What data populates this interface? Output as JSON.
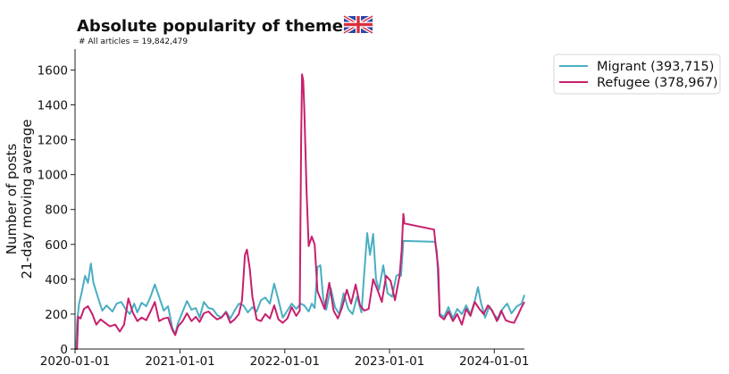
{
  "chart_data": {
    "type": "line",
    "title": "Absolute popularity of themes",
    "subtitle": "# All articles = 19,842,479",
    "flag_icon": "uk-flag-icon",
    "ylabel_lines": [
      "Number of posts",
      "21-day moving average"
    ],
    "xlabel": "",
    "ylim": [
      0,
      1720
    ],
    "y_ticks": [
      0,
      200,
      400,
      600,
      800,
      1000,
      1200,
      1400,
      1600
    ],
    "x_range": [
      "2020-01-01",
      "2024-04-15"
    ],
    "x_ticks": [
      "2020-01-01",
      "2021-01-01",
      "2022-01-01",
      "2023-01-01",
      "2024-01-01"
    ],
    "grid": false,
    "legend_position": "outside-top-right",
    "series": [
      {
        "name": "Migrant (393,715)",
        "color": "#4aaec2",
        "points": [
          [
            "2020-01-01",
            0
          ],
          [
            "2020-01-05",
            0
          ],
          [
            "2020-01-08",
            150
          ],
          [
            "2020-01-15",
            260
          ],
          [
            "2020-01-25",
            330
          ],
          [
            "2020-02-05",
            420
          ],
          [
            "2020-02-15",
            380
          ],
          [
            "2020-02-25",
            490
          ],
          [
            "2020-03-05",
            380
          ],
          [
            "2020-03-20",
            300
          ],
          [
            "2020-04-05",
            220
          ],
          [
            "2020-04-20",
            250
          ],
          [
            "2020-05-10",
            215
          ],
          [
            "2020-05-25",
            260
          ],
          [
            "2020-06-10",
            270
          ],
          [
            "2020-06-25",
            230
          ],
          [
            "2020-07-10",
            200
          ],
          [
            "2020-07-25",
            260
          ],
          [
            "2020-08-05",
            210
          ],
          [
            "2020-08-20",
            265
          ],
          [
            "2020-09-05",
            245
          ],
          [
            "2020-09-20",
            300
          ],
          [
            "2020-10-05",
            370
          ],
          [
            "2020-10-20",
            300
          ],
          [
            "2020-11-05",
            220
          ],
          [
            "2020-11-20",
            245
          ],
          [
            "2020-12-05",
            120
          ],
          [
            "2020-12-15",
            85
          ],
          [
            "2020-12-25",
            150
          ],
          [
            "2021-01-10",
            215
          ],
          [
            "2021-01-25",
            275
          ],
          [
            "2021-02-10",
            225
          ],
          [
            "2021-02-25",
            235
          ],
          [
            "2021-03-10",
            180
          ],
          [
            "2021-03-25",
            270
          ],
          [
            "2021-04-10",
            235
          ],
          [
            "2021-04-25",
            230
          ],
          [
            "2021-05-10",
            195
          ],
          [
            "2021-05-25",
            180
          ],
          [
            "2021-06-10",
            215
          ],
          [
            "2021-06-25",
            175
          ],
          [
            "2021-07-10",
            220
          ],
          [
            "2021-07-25",
            260
          ],
          [
            "2021-08-10",
            250
          ],
          [
            "2021-08-25",
            210
          ],
          [
            "2021-09-10",
            240
          ],
          [
            "2021-09-25",
            215
          ],
          [
            "2021-10-10",
            280
          ],
          [
            "2021-10-25",
            295
          ],
          [
            "2021-11-10",
            260
          ],
          [
            "2021-11-25",
            375
          ],
          [
            "2021-12-10",
            280
          ],
          [
            "2021-12-25",
            180
          ],
          [
            "2022-01-10",
            220
          ],
          [
            "2022-01-25",
            260
          ],
          [
            "2022-02-10",
            230
          ],
          [
            "2022-02-25",
            260
          ],
          [
            "2022-03-10",
            250
          ],
          [
            "2022-03-25",
            215
          ],
          [
            "2022-04-05",
            260
          ],
          [
            "2022-04-15",
            235
          ],
          [
            "2022-04-25",
            470
          ],
          [
            "2022-05-05",
            480
          ],
          [
            "2022-05-15",
            290
          ],
          [
            "2022-05-25",
            225
          ],
          [
            "2022-06-10",
            350
          ],
          [
            "2022-06-25",
            240
          ],
          [
            "2022-07-10",
            200
          ],
          [
            "2022-07-25",
            320
          ],
          [
            "2022-08-10",
            230
          ],
          [
            "2022-08-25",
            200
          ],
          [
            "2022-09-10",
            300
          ],
          [
            "2022-09-25",
            210
          ],
          [
            "2022-10-05",
            440
          ],
          [
            "2022-10-15",
            665
          ],
          [
            "2022-10-25",
            540
          ],
          [
            "2022-11-05",
            660
          ],
          [
            "2022-11-15",
            400
          ],
          [
            "2022-11-25",
            340
          ],
          [
            "2022-12-10",
            480
          ],
          [
            "2022-12-25",
            320
          ],
          [
            "2023-01-10",
            300
          ],
          [
            "2023-01-25",
            420
          ],
          [
            "2023-02-05",
            430
          ],
          [
            "2023-02-10",
            420
          ],
          [
            "2023-02-18",
            620
          ],
          [
            "2023-06-08",
            615
          ],
          [
            "2023-06-15",
            560
          ],
          [
            "2023-06-25",
            200
          ],
          [
            "2023-07-10",
            185
          ],
          [
            "2023-07-25",
            240
          ],
          [
            "2023-08-10",
            175
          ],
          [
            "2023-08-25",
            230
          ],
          [
            "2023-09-10",
            200
          ],
          [
            "2023-09-25",
            250
          ],
          [
            "2023-10-10",
            200
          ],
          [
            "2023-10-25",
            275
          ],
          [
            "2023-11-05",
            355
          ],
          [
            "2023-11-15",
            270
          ],
          [
            "2023-11-30",
            180
          ],
          [
            "2023-12-15",
            245
          ],
          [
            "2023-12-30",
            200
          ],
          [
            "2024-01-15",
            170
          ],
          [
            "2024-01-30",
            230
          ],
          [
            "2024-02-15",
            260
          ],
          [
            "2024-03-01",
            205
          ],
          [
            "2024-03-20",
            245
          ],
          [
            "2024-04-05",
            260
          ],
          [
            "2024-04-15",
            310
          ]
        ]
      },
      {
        "name": "Refugee (378,967)",
        "color": "#c71f6d",
        "points": [
          [
            "2020-01-01",
            0
          ],
          [
            "2020-01-08",
            0
          ],
          [
            "2020-01-12",
            185
          ],
          [
            "2020-01-20",
            175
          ],
          [
            "2020-02-01",
            230
          ],
          [
            "2020-02-15",
            245
          ],
          [
            "2020-03-01",
            200
          ],
          [
            "2020-03-15",
            140
          ],
          [
            "2020-03-30",
            170
          ],
          [
            "2020-04-15",
            150
          ],
          [
            "2020-05-01",
            130
          ],
          [
            "2020-05-20",
            140
          ],
          [
            "2020-06-05",
            100
          ],
          [
            "2020-06-20",
            140
          ],
          [
            "2020-07-05",
            290
          ],
          [
            "2020-07-20",
            210
          ],
          [
            "2020-08-05",
            160
          ],
          [
            "2020-08-20",
            180
          ],
          [
            "2020-09-05",
            165
          ],
          [
            "2020-09-20",
            215
          ],
          [
            "2020-10-05",
            270
          ],
          [
            "2020-10-20",
            160
          ],
          [
            "2020-11-05",
            175
          ],
          [
            "2020-11-20",
            180
          ],
          [
            "2020-12-05",
            110
          ],
          [
            "2020-12-15",
            80
          ],
          [
            "2020-12-25",
            130
          ],
          [
            "2021-01-10",
            160
          ],
          [
            "2021-01-25",
            205
          ],
          [
            "2021-02-10",
            160
          ],
          [
            "2021-02-25",
            185
          ],
          [
            "2021-03-10",
            155
          ],
          [
            "2021-03-25",
            205
          ],
          [
            "2021-04-10",
            215
          ],
          [
            "2021-04-25",
            190
          ],
          [
            "2021-05-10",
            170
          ],
          [
            "2021-05-25",
            180
          ],
          [
            "2021-06-10",
            210
          ],
          [
            "2021-06-25",
            150
          ],
          [
            "2021-07-10",
            170
          ],
          [
            "2021-07-25",
            200
          ],
          [
            "2021-08-05",
            280
          ],
          [
            "2021-08-15",
            540
          ],
          [
            "2021-08-22",
            570
          ],
          [
            "2021-09-01",
            460
          ],
          [
            "2021-09-10",
            300
          ],
          [
            "2021-09-25",
            170
          ],
          [
            "2021-10-10",
            160
          ],
          [
            "2021-10-25",
            200
          ],
          [
            "2021-11-10",
            175
          ],
          [
            "2021-11-25",
            250
          ],
          [
            "2021-12-10",
            170
          ],
          [
            "2021-12-25",
            150
          ],
          [
            "2022-01-10",
            175
          ],
          [
            "2022-01-25",
            240
          ],
          [
            "2022-02-10",
            190
          ],
          [
            "2022-02-22",
            220
          ],
          [
            "2022-02-27",
            1200
          ],
          [
            "2022-03-02",
            1575
          ],
          [
            "2022-03-06",
            1540
          ],
          [
            "2022-03-10",
            1380
          ],
          [
            "2022-03-18",
            900
          ],
          [
            "2022-03-25",
            590
          ],
          [
            "2022-04-05",
            645
          ],
          [
            "2022-04-15",
            600
          ],
          [
            "2022-04-25",
            330
          ],
          [
            "2022-05-05",
            290
          ],
          [
            "2022-05-20",
            230
          ],
          [
            "2022-06-05",
            380
          ],
          [
            "2022-06-20",
            220
          ],
          [
            "2022-07-05",
            175
          ],
          [
            "2022-07-20",
            240
          ],
          [
            "2022-08-05",
            340
          ],
          [
            "2022-08-20",
            260
          ],
          [
            "2022-09-05",
            370
          ],
          [
            "2022-09-20",
            250
          ],
          [
            "2022-10-05",
            220
          ],
          [
            "2022-10-20",
            230
          ],
          [
            "2022-11-05",
            400
          ],
          [
            "2022-11-20",
            340
          ],
          [
            "2022-12-05",
            270
          ],
          [
            "2022-12-20",
            420
          ],
          [
            "2023-01-05",
            390
          ],
          [
            "2023-01-20",
            280
          ],
          [
            "2023-02-05",
            420
          ],
          [
            "2023-02-12",
            560
          ],
          [
            "2023-02-18",
            775
          ],
          [
            "2023-02-22",
            720
          ],
          [
            "2023-06-05",
            685
          ],
          [
            "2023-06-20",
            460
          ],
          [
            "2023-06-25",
            190
          ],
          [
            "2023-07-10",
            170
          ],
          [
            "2023-07-25",
            215
          ],
          [
            "2023-08-10",
            160
          ],
          [
            "2023-08-25",
            200
          ],
          [
            "2023-09-10",
            140
          ],
          [
            "2023-09-25",
            230
          ],
          [
            "2023-10-10",
            190
          ],
          [
            "2023-10-25",
            270
          ],
          [
            "2023-11-10",
            230
          ],
          [
            "2023-11-25",
            200
          ],
          [
            "2023-12-10",
            250
          ],
          [
            "2023-12-25",
            220
          ],
          [
            "2024-01-10",
            160
          ],
          [
            "2024-01-25",
            220
          ],
          [
            "2024-02-10",
            165
          ],
          [
            "2024-02-25",
            155
          ],
          [
            "2024-03-10",
            150
          ],
          [
            "2024-03-25",
            200
          ],
          [
            "2024-04-05",
            240
          ],
          [
            "2024-04-15",
            270
          ]
        ]
      }
    ]
  }
}
